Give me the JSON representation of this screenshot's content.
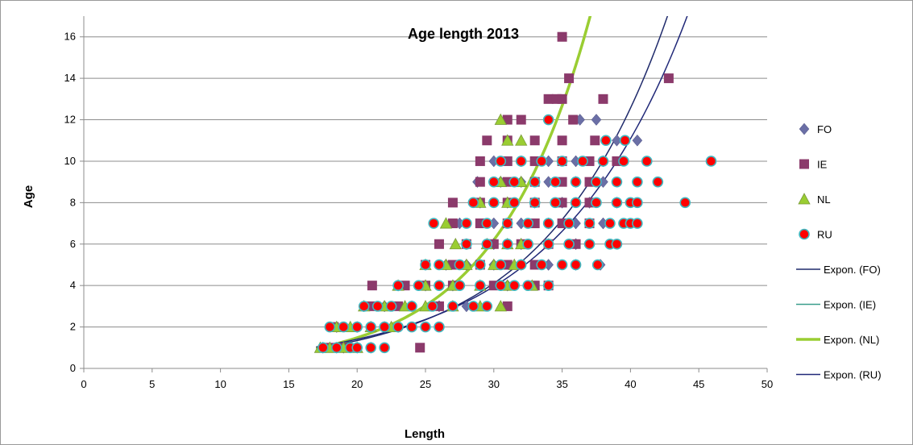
{
  "chart_data": {
    "type": "scatter",
    "title": "Age length 2013",
    "xlabel": "Length",
    "ylabel": "Age",
    "xlim": [
      0,
      50
    ],
    "ylim": [
      0,
      17
    ],
    "xticks": [
      0,
      5,
      10,
      15,
      20,
      25,
      30,
      35,
      40,
      45,
      50
    ],
    "yticks": [
      0,
      2,
      4,
      6,
      8,
      10,
      12,
      14,
      16
    ],
    "grid": "horizontal",
    "legend_position": "right",
    "series": [
      {
        "name": "FO",
        "marker": "diamond",
        "color": "#6B6FA6",
        "points": [
          [
            17.5,
            1
          ],
          [
            18.5,
            1
          ],
          [
            19,
            1
          ],
          [
            20,
            1
          ],
          [
            21,
            1
          ],
          [
            18.5,
            2
          ],
          [
            20,
            2
          ],
          [
            21,
            2
          ],
          [
            22,
            2
          ],
          [
            23,
            2
          ],
          [
            20.5,
            3
          ],
          [
            22,
            3
          ],
          [
            24,
            3
          ],
          [
            26,
            3
          ],
          [
            28,
            3
          ],
          [
            23,
            4
          ],
          [
            25,
            4
          ],
          [
            27,
            4
          ],
          [
            29,
            4
          ],
          [
            31,
            4
          ],
          [
            25,
            5
          ],
          [
            26.5,
            5
          ],
          [
            28,
            5
          ],
          [
            30,
            5
          ],
          [
            32,
            5
          ],
          [
            34,
            5
          ],
          [
            36,
            5
          ],
          [
            37.8,
            5
          ],
          [
            28,
            6
          ],
          [
            30,
            6
          ],
          [
            32,
            6
          ],
          [
            34,
            6
          ],
          [
            36,
            6
          ],
          [
            27.5,
            7
          ],
          [
            30,
            7
          ],
          [
            32,
            7
          ],
          [
            34,
            7
          ],
          [
            36,
            7
          ],
          [
            38,
            7
          ],
          [
            29,
            8
          ],
          [
            31,
            8
          ],
          [
            33,
            8
          ],
          [
            35,
            8
          ],
          [
            37,
            8
          ],
          [
            39,
            8
          ],
          [
            28.8,
            9
          ],
          [
            30.5,
            9
          ],
          [
            32,
            9
          ],
          [
            34,
            9
          ],
          [
            36,
            9
          ],
          [
            38,
            9
          ],
          [
            30,
            10
          ],
          [
            32,
            10
          ],
          [
            34,
            10
          ],
          [
            36,
            10
          ],
          [
            38,
            10
          ],
          [
            40.5,
            11
          ],
          [
            39,
            11
          ],
          [
            36.3,
            12
          ],
          [
            37.5,
            12
          ]
        ]
      },
      {
        "name": "IE",
        "marker": "square",
        "color": "#8B3A6B",
        "points": [
          [
            24.6,
            1
          ],
          [
            18,
            1
          ],
          [
            19,
            1
          ],
          [
            18.3,
            2
          ],
          [
            21,
            3
          ],
          [
            23,
            3
          ],
          [
            26,
            3
          ],
          [
            31,
            3
          ],
          [
            21.1,
            4
          ],
          [
            23.5,
            4
          ],
          [
            25,
            4
          ],
          [
            27,
            4
          ],
          [
            30,
            4
          ],
          [
            33,
            4
          ],
          [
            34,
            4
          ],
          [
            25,
            5
          ],
          [
            27,
            5
          ],
          [
            29,
            5
          ],
          [
            31,
            5
          ],
          [
            33,
            5
          ],
          [
            26,
            6
          ],
          [
            28,
            6
          ],
          [
            30,
            6
          ],
          [
            32,
            6
          ],
          [
            34,
            6
          ],
          [
            36,
            6
          ],
          [
            27,
            7
          ],
          [
            29,
            7
          ],
          [
            31,
            7
          ],
          [
            33,
            7
          ],
          [
            35,
            7
          ],
          [
            37,
            7
          ],
          [
            27,
            8
          ],
          [
            29,
            8
          ],
          [
            31,
            8
          ],
          [
            33,
            8
          ],
          [
            35,
            8
          ],
          [
            37,
            8
          ],
          [
            29,
            9
          ],
          [
            31,
            9
          ],
          [
            33,
            9
          ],
          [
            35,
            9
          ],
          [
            37,
            9
          ],
          [
            29,
            10
          ],
          [
            31,
            10
          ],
          [
            33,
            10
          ],
          [
            35,
            10
          ],
          [
            37,
            10
          ],
          [
            39,
            10
          ],
          [
            29.5,
            11
          ],
          [
            31,
            11
          ],
          [
            33,
            11
          ],
          [
            35,
            11
          ],
          [
            37.4,
            11
          ],
          [
            31,
            12
          ],
          [
            32,
            12
          ],
          [
            35.8,
            12
          ],
          [
            34,
            13
          ],
          [
            34.6,
            13
          ],
          [
            35,
            13
          ],
          [
            38,
            13
          ],
          [
            35.5,
            14
          ],
          [
            42.8,
            14
          ],
          [
            35,
            16
          ]
        ]
      },
      {
        "name": "NL",
        "marker": "triangle",
        "color": "#9ACD32",
        "points": [
          [
            17.3,
            1
          ],
          [
            18,
            1
          ],
          [
            19,
            1
          ],
          [
            20,
            1
          ],
          [
            18.5,
            2
          ],
          [
            19.5,
            2
          ],
          [
            21,
            2
          ],
          [
            22.5,
            2
          ],
          [
            20.5,
            3
          ],
          [
            22,
            3
          ],
          [
            23.5,
            3
          ],
          [
            25,
            3
          ],
          [
            27,
            3
          ],
          [
            29,
            3
          ],
          [
            30.5,
            3
          ],
          [
            23,
            4
          ],
          [
            25,
            4
          ],
          [
            27,
            4
          ],
          [
            29,
            4
          ],
          [
            31,
            4
          ],
          [
            32.8,
            4
          ],
          [
            25,
            5
          ],
          [
            26.5,
            5
          ],
          [
            28,
            5
          ],
          [
            30,
            5
          ],
          [
            31.5,
            5
          ],
          [
            26.5,
            7
          ],
          [
            27.2,
            6
          ],
          [
            29.5,
            6
          ],
          [
            31,
            6
          ],
          [
            32,
            6
          ],
          [
            29,
            8
          ],
          [
            31,
            8
          ],
          [
            30.5,
            9
          ],
          [
            32,
            9
          ],
          [
            31,
            11
          ],
          [
            32,
            11
          ],
          [
            30.5,
            12
          ]
        ]
      },
      {
        "name": "RU",
        "marker": "circle",
        "color": "#FF0000",
        "points": [
          [
            17.5,
            1
          ],
          [
            18.5,
            1
          ],
          [
            19.5,
            1
          ],
          [
            20,
            1
          ],
          [
            21,
            1
          ],
          [
            22,
            1
          ],
          [
            18,
            2
          ],
          [
            19,
            2
          ],
          [
            20,
            2
          ],
          [
            21,
            2
          ],
          [
            22,
            2
          ],
          [
            23,
            2
          ],
          [
            24,
            2
          ],
          [
            25,
            2
          ],
          [
            26,
            2
          ],
          [
            20.5,
            3
          ],
          [
            21.5,
            3
          ],
          [
            22.5,
            3
          ],
          [
            24,
            3
          ],
          [
            25.5,
            3
          ],
          [
            27,
            3
          ],
          [
            28.5,
            3
          ],
          [
            29.5,
            3
          ],
          [
            23,
            4
          ],
          [
            24.5,
            4
          ],
          [
            26,
            4
          ],
          [
            27.5,
            4
          ],
          [
            29,
            4
          ],
          [
            30.5,
            4
          ],
          [
            31.5,
            4
          ],
          [
            32.5,
            4
          ],
          [
            34,
            4
          ],
          [
            25,
            5
          ],
          [
            26,
            5
          ],
          [
            27.5,
            5
          ],
          [
            29,
            5
          ],
          [
            30.5,
            5
          ],
          [
            32,
            5
          ],
          [
            33.5,
            5
          ],
          [
            35,
            5
          ],
          [
            36,
            5
          ],
          [
            37.6,
            5
          ],
          [
            28,
            6
          ],
          [
            29.5,
            6
          ],
          [
            31,
            6
          ],
          [
            32.5,
            6
          ],
          [
            34,
            6
          ],
          [
            35.5,
            6
          ],
          [
            37,
            6
          ],
          [
            38.5,
            6
          ],
          [
            39,
            6
          ],
          [
            25.6,
            7
          ],
          [
            28,
            7
          ],
          [
            29.5,
            7
          ],
          [
            31,
            7
          ],
          [
            32.5,
            7
          ],
          [
            34,
            7
          ],
          [
            35.5,
            7
          ],
          [
            37,
            7
          ],
          [
            38.5,
            7
          ],
          [
            39.5,
            7
          ],
          [
            40,
            7
          ],
          [
            40.5,
            7
          ],
          [
            28.5,
            8
          ],
          [
            30,
            8
          ],
          [
            31.5,
            8
          ],
          [
            33,
            8
          ],
          [
            34.5,
            8
          ],
          [
            36,
            8
          ],
          [
            37.5,
            8
          ],
          [
            39,
            8
          ],
          [
            40,
            8
          ],
          [
            40.5,
            8
          ],
          [
            44,
            8
          ],
          [
            30,
            9
          ],
          [
            31.5,
            9
          ],
          [
            33,
            9
          ],
          [
            34.5,
            9
          ],
          [
            36,
            9
          ],
          [
            37.5,
            9
          ],
          [
            39,
            9
          ],
          [
            40.5,
            9
          ],
          [
            42,
            9
          ],
          [
            30.5,
            10
          ],
          [
            32,
            10
          ],
          [
            33.5,
            10
          ],
          [
            35,
            10
          ],
          [
            36.5,
            10
          ],
          [
            38,
            10
          ],
          [
            39.5,
            10
          ],
          [
            41.2,
            10
          ],
          [
            45.9,
            10
          ],
          [
            38.2,
            11
          ],
          [
            39.6,
            11
          ],
          [
            34,
            12
          ]
        ]
      }
    ],
    "trendlines": [
      {
        "name": "Expon. (FO)",
        "type": "exponential",
        "color": "#1F2A6B",
        "width": 1.5,
        "a": 0.1435,
        "b": 0.1118
      },
      {
        "name": "Expon. (IE)",
        "type": "exponential",
        "color": "#3A9E8C",
        "width": 1.5,
        "a": 0.0847,
        "b": 0.1431
      },
      {
        "name": "Expon. (NL)",
        "type": "exponential",
        "color": "#9ACD32",
        "width": 3.5,
        "a": 0.0847,
        "b": 0.1431
      },
      {
        "name": "Expon. (RU)",
        "type": "exponential",
        "color": "#202878",
        "width": 1.5,
        "a": 0.1793,
        "b": 0.1031
      }
    ]
  }
}
